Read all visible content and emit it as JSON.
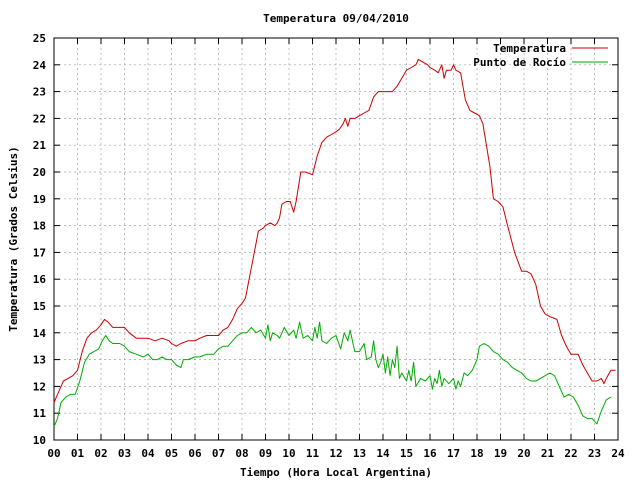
{
  "chart_data": {
    "type": "line",
    "title": "Temperatura 09/04/2010",
    "xlabel": "Tiempo (Hora Local Argentina)",
    "ylabel": "Temperatura (Grados Celsius)",
    "xlim": [
      0,
      24
    ],
    "ylim": [
      10,
      25
    ],
    "x_ticks": [
      "00",
      "01",
      "02",
      "03",
      "04",
      "05",
      "06",
      "07",
      "08",
      "09",
      "10",
      "11",
      "12",
      "13",
      "14",
      "15",
      "16",
      "17",
      "18",
      "19",
      "20",
      "21",
      "22",
      "23",
      "24"
    ],
    "y_ticks": [
      10,
      11,
      12,
      13,
      14,
      15,
      16,
      17,
      18,
      19,
      20,
      21,
      22,
      23,
      24,
      25
    ],
    "grid": true,
    "legend_position": "top-right",
    "series": [
      {
        "name": "Temperatura",
        "color": "#cc0000",
        "points": [
          [
            0.0,
            11.4
          ],
          [
            0.2,
            11.8
          ],
          [
            0.4,
            12.2
          ],
          [
            0.6,
            12.3
          ],
          [
            0.8,
            12.4
          ],
          [
            1.0,
            12.6
          ],
          [
            1.2,
            13.3
          ],
          [
            1.4,
            13.8
          ],
          [
            1.6,
            14.0
          ],
          [
            1.8,
            14.1
          ],
          [
            2.0,
            14.3
          ],
          [
            2.15,
            14.5
          ],
          [
            2.3,
            14.4
          ],
          [
            2.5,
            14.2
          ],
          [
            2.8,
            14.2
          ],
          [
            3.0,
            14.2
          ],
          [
            3.2,
            14.0
          ],
          [
            3.5,
            13.8
          ],
          [
            3.8,
            13.8
          ],
          [
            4.0,
            13.8
          ],
          [
            4.3,
            13.7
          ],
          [
            4.6,
            13.8
          ],
          [
            4.9,
            13.7
          ],
          [
            5.0,
            13.6
          ],
          [
            5.2,
            13.5
          ],
          [
            5.4,
            13.6
          ],
          [
            5.7,
            13.7
          ],
          [
            6.0,
            13.7
          ],
          [
            6.2,
            13.8
          ],
          [
            6.5,
            13.9
          ],
          [
            6.8,
            13.9
          ],
          [
            7.0,
            13.9
          ],
          [
            7.2,
            14.1
          ],
          [
            7.4,
            14.2
          ],
          [
            7.6,
            14.5
          ],
          [
            7.8,
            14.9
          ],
          [
            8.0,
            15.1
          ],
          [
            8.15,
            15.3
          ],
          [
            8.3,
            16.0
          ],
          [
            8.5,
            16.9
          ],
          [
            8.7,
            17.8
          ],
          [
            8.9,
            17.9
          ],
          [
            9.0,
            18.0
          ],
          [
            9.2,
            18.1
          ],
          [
            9.4,
            18.0
          ],
          [
            9.5,
            18.1
          ],
          [
            9.6,
            18.3
          ],
          [
            9.7,
            18.8
          ],
          [
            9.9,
            18.9
          ],
          [
            10.05,
            18.9
          ],
          [
            10.2,
            18.5
          ],
          [
            10.3,
            18.9
          ],
          [
            10.5,
            20.0
          ],
          [
            10.7,
            20.0
          ],
          [
            11.0,
            19.9
          ],
          [
            11.2,
            20.6
          ],
          [
            11.4,
            21.1
          ],
          [
            11.6,
            21.3
          ],
          [
            11.8,
            21.4
          ],
          [
            12.0,
            21.5
          ],
          [
            12.15,
            21.6
          ],
          [
            12.3,
            21.8
          ],
          [
            12.4,
            22.0
          ],
          [
            12.5,
            21.7
          ],
          [
            12.6,
            22.0
          ],
          [
            12.8,
            22.0
          ],
          [
            13.0,
            22.1
          ],
          [
            13.2,
            22.2
          ],
          [
            13.4,
            22.3
          ],
          [
            13.6,
            22.8
          ],
          [
            13.8,
            23.0
          ],
          [
            14.0,
            23.0
          ],
          [
            14.2,
            23.0
          ],
          [
            14.4,
            23.0
          ],
          [
            14.6,
            23.2
          ],
          [
            14.8,
            23.5
          ],
          [
            15.0,
            23.8
          ],
          [
            15.2,
            23.9
          ],
          [
            15.4,
            24.0
          ],
          [
            15.5,
            24.2
          ],
          [
            15.7,
            24.1
          ],
          [
            15.9,
            24.0
          ],
          [
            16.0,
            23.9
          ],
          [
            16.2,
            23.8
          ],
          [
            16.35,
            23.7
          ],
          [
            16.5,
            24.0
          ],
          [
            16.6,
            23.5
          ],
          [
            16.7,
            23.8
          ],
          [
            16.9,
            23.8
          ],
          [
            17.0,
            24.0
          ],
          [
            17.1,
            23.8
          ],
          [
            17.3,
            23.7
          ],
          [
            17.5,
            22.7
          ],
          [
            17.7,
            22.3
          ],
          [
            17.9,
            22.2
          ],
          [
            18.1,
            22.1
          ],
          [
            18.25,
            21.8
          ],
          [
            18.4,
            21.0
          ],
          [
            18.55,
            20.2
          ],
          [
            18.7,
            19.0
          ],
          [
            18.9,
            18.9
          ],
          [
            19.1,
            18.7
          ],
          [
            19.3,
            18.0
          ],
          [
            19.6,
            17.0
          ],
          [
            19.9,
            16.3
          ],
          [
            20.1,
            16.3
          ],
          [
            20.3,
            16.2
          ],
          [
            20.5,
            15.8
          ],
          [
            20.7,
            15.0
          ],
          [
            20.9,
            14.7
          ],
          [
            21.1,
            14.6
          ],
          [
            21.4,
            14.5
          ],
          [
            21.6,
            13.9
          ],
          [
            21.8,
            13.5
          ],
          [
            22.0,
            13.2
          ],
          [
            22.3,
            13.2
          ],
          [
            22.5,
            12.8
          ],
          [
            22.7,
            12.5
          ],
          [
            22.9,
            12.2
          ],
          [
            23.1,
            12.2
          ],
          [
            23.3,
            12.3
          ],
          [
            23.4,
            12.1
          ],
          [
            23.5,
            12.3
          ],
          [
            23.7,
            12.6
          ],
          [
            23.9,
            12.6
          ]
        ]
      },
      {
        "name": "Punto de Rocío",
        "color": "#00aa00",
        "points": [
          [
            0.0,
            10.5
          ],
          [
            0.15,
            10.8
          ],
          [
            0.3,
            11.4
          ],
          [
            0.5,
            11.6
          ],
          [
            0.7,
            11.7
          ],
          [
            0.9,
            11.7
          ],
          [
            1.1,
            12.2
          ],
          [
            1.3,
            12.9
          ],
          [
            1.5,
            13.2
          ],
          [
            1.7,
            13.3
          ],
          [
            1.9,
            13.4
          ],
          [
            2.05,
            13.7
          ],
          [
            2.2,
            13.9
          ],
          [
            2.35,
            13.7
          ],
          [
            2.5,
            13.6
          ],
          [
            2.8,
            13.6
          ],
          [
            3.0,
            13.5
          ],
          [
            3.2,
            13.3
          ],
          [
            3.5,
            13.2
          ],
          [
            3.8,
            13.1
          ],
          [
            4.0,
            13.2
          ],
          [
            4.2,
            13.0
          ],
          [
            4.4,
            13.0
          ],
          [
            4.6,
            13.1
          ],
          [
            4.8,
            13.0
          ],
          [
            5.0,
            13.0
          ],
          [
            5.2,
            12.8
          ],
          [
            5.4,
            12.7
          ],
          [
            5.5,
            13.0
          ],
          [
            5.7,
            13.0
          ],
          [
            6.0,
            13.1
          ],
          [
            6.2,
            13.1
          ],
          [
            6.5,
            13.2
          ],
          [
            6.8,
            13.2
          ],
          [
            7.0,
            13.4
          ],
          [
            7.2,
            13.5
          ],
          [
            7.4,
            13.5
          ],
          [
            7.6,
            13.7
          ],
          [
            7.8,
            13.9
          ],
          [
            8.0,
            14.0
          ],
          [
            8.2,
            14.0
          ],
          [
            8.4,
            14.2
          ],
          [
            8.6,
            14.0
          ],
          [
            8.8,
            14.1
          ],
          [
            9.0,
            13.8
          ],
          [
            9.1,
            14.3
          ],
          [
            9.2,
            13.7
          ],
          [
            9.3,
            14.0
          ],
          [
            9.5,
            13.9
          ],
          [
            9.6,
            13.8
          ],
          [
            9.8,
            14.2
          ],
          [
            10.0,
            13.9
          ],
          [
            10.2,
            14.1
          ],
          [
            10.3,
            13.8
          ],
          [
            10.45,
            14.4
          ],
          [
            10.6,
            13.8
          ],
          [
            10.8,
            13.9
          ],
          [
            11.0,
            13.7
          ],
          [
            11.1,
            14.2
          ],
          [
            11.2,
            13.8
          ],
          [
            11.3,
            14.4
          ],
          [
            11.4,
            13.7
          ],
          [
            11.6,
            13.6
          ],
          [
            11.8,
            13.8
          ],
          [
            12.0,
            13.9
          ],
          [
            12.2,
            13.4
          ],
          [
            12.35,
            14.0
          ],
          [
            12.5,
            13.7
          ],
          [
            12.6,
            14.1
          ],
          [
            12.8,
            13.3
          ],
          [
            13.0,
            13.3
          ],
          [
            13.2,
            13.6
          ],
          [
            13.3,
            13.0
          ],
          [
            13.5,
            13.1
          ],
          [
            13.6,
            13.7
          ],
          [
            13.7,
            13.0
          ],
          [
            13.8,
            12.7
          ],
          [
            13.9,
            12.9
          ],
          [
            14.0,
            13.2
          ],
          [
            14.1,
            12.5
          ],
          [
            14.2,
            13.1
          ],
          [
            14.3,
            12.4
          ],
          [
            14.4,
            13.0
          ],
          [
            14.5,
            12.7
          ],
          [
            14.6,
            13.5
          ],
          [
            14.7,
            12.3
          ],
          [
            14.8,
            12.5
          ],
          [
            15.0,
            12.2
          ],
          [
            15.1,
            12.6
          ],
          [
            15.2,
            12.2
          ],
          [
            15.3,
            12.9
          ],
          [
            15.4,
            12.0
          ],
          [
            15.6,
            12.3
          ],
          [
            15.8,
            12.2
          ],
          [
            16.0,
            12.4
          ],
          [
            16.1,
            11.9
          ],
          [
            16.2,
            12.3
          ],
          [
            16.3,
            12.1
          ],
          [
            16.4,
            12.6
          ],
          [
            16.5,
            12.0
          ],
          [
            16.6,
            12.3
          ],
          [
            16.8,
            12.1
          ],
          [
            17.0,
            12.3
          ],
          [
            17.1,
            11.9
          ],
          [
            17.2,
            12.2
          ],
          [
            17.3,
            12.0
          ],
          [
            17.45,
            12.5
          ],
          [
            17.6,
            12.4
          ],
          [
            17.8,
            12.6
          ],
          [
            18.0,
            13.0
          ],
          [
            18.1,
            13.5
          ],
          [
            18.3,
            13.6
          ],
          [
            18.5,
            13.5
          ],
          [
            18.7,
            13.3
          ],
          [
            18.9,
            13.2
          ],
          [
            19.1,
            13.0
          ],
          [
            19.3,
            12.9
          ],
          [
            19.5,
            12.7
          ],
          [
            19.7,
            12.6
          ],
          [
            19.9,
            12.5
          ],
          [
            20.1,
            12.3
          ],
          [
            20.3,
            12.2
          ],
          [
            20.5,
            12.2
          ],
          [
            20.7,
            12.3
          ],
          [
            20.9,
            12.4
          ],
          [
            21.1,
            12.5
          ],
          [
            21.3,
            12.4
          ],
          [
            21.5,
            12.0
          ],
          [
            21.7,
            11.6
          ],
          [
            21.9,
            11.7
          ],
          [
            22.1,
            11.6
          ],
          [
            22.3,
            11.3
          ],
          [
            22.5,
            10.9
          ],
          [
            22.7,
            10.8
          ],
          [
            22.9,
            10.8
          ],
          [
            23.1,
            10.6
          ],
          [
            23.3,
            11.1
          ],
          [
            23.5,
            11.5
          ],
          [
            23.7,
            11.6
          ]
        ]
      }
    ]
  }
}
